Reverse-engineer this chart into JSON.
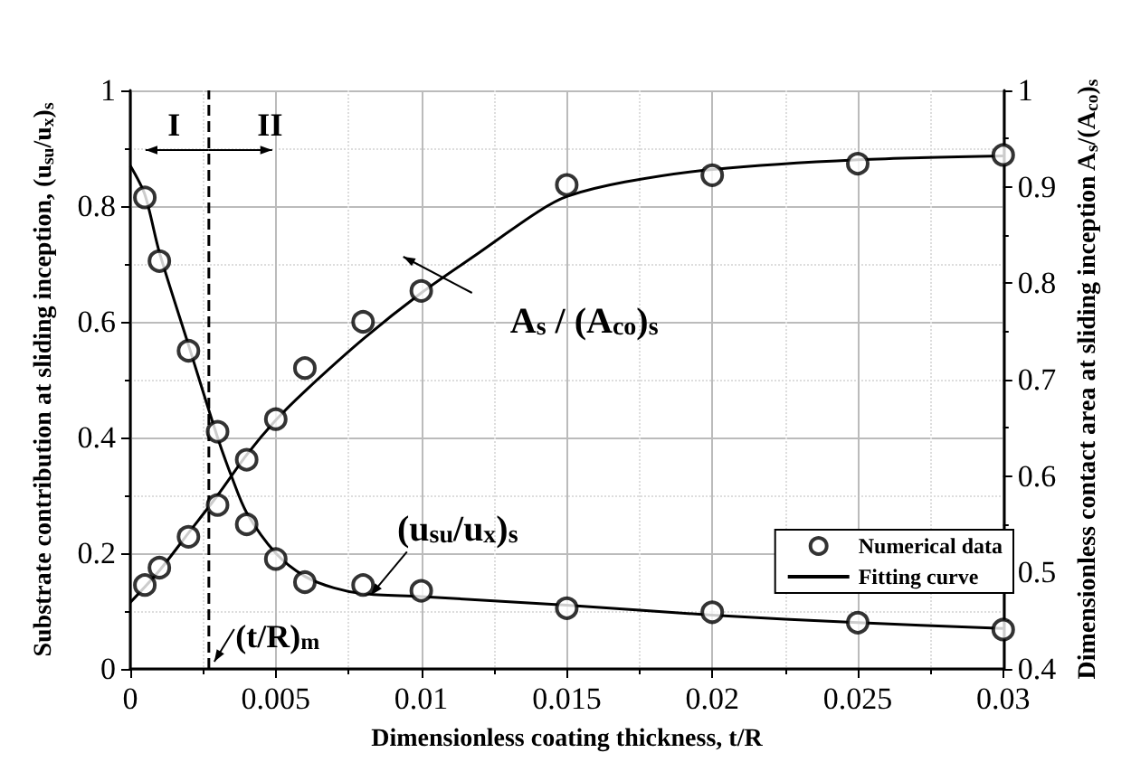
{
  "chart_data": {
    "type": "scatter",
    "xlabel": "Dimensionless coating thickness, t/R",
    "ylabel": "Substrate contribution at sliding inception, (u$_{su}$/u$_{x}$)$_{s}$",
    "y2label": "Dimensionless contact area at sliding inception A$_{s}$/(A$_{co}$)$_{s}$",
    "xlim": [
      0,
      0.03
    ],
    "xticks": [
      0,
      0.005,
      0.01,
      0.015,
      0.02,
      0.025,
      0.03
    ],
    "ylim": [
      0,
      1
    ],
    "yticks": [
      0,
      0.2,
      0.4,
      0.6,
      0.8,
      1.0
    ],
    "y2lim": [
      0.4,
      1
    ],
    "y2ticks": [
      0.4,
      0.5,
      0.6,
      0.7,
      0.8,
      0.9,
      1.0
    ],
    "grid": true,
    "legend": "bottom right",
    "marker": "circle",
    "series": [
      {
        "name": "Numerical data",
        "color": "#000000",
        "x": [
          0.0005,
          0.001,
          0.002,
          0.003,
          0.004,
          0.005,
          0.006,
          0.008,
          0.01,
          0.015,
          0.02,
          0.025,
          0.03
        ],
        "values": [
          0.815,
          0.705,
          0.55,
          0.41,
          0.25,
          0.19,
          0.15,
          0.145,
          0.135,
          0.105,
          0.098,
          0.08,
          0.068
        ]
      },
      {
        "axis": "y2",
        "color": "#000000",
        "x": [
          0.0005,
          0.001,
          0.002,
          0.003,
          0.004,
          0.005,
          0.006,
          0.008,
          0.01,
          0.015,
          0.02,
          0.025,
          0.03
        ],
        "values": [
          0.487,
          0.505,
          0.537,
          0.57,
          0.617,
          0.659,
          0.712,
          0.76,
          0.792,
          0.902,
          0.912,
          0.924,
          0.933
        ]
      },
      {
        "name": "Fitting curve",
        "type": "line",
        "color": "#000000",
        "line_style": "solid",
        "marker": "none",
        "x": [
          0,
          0.0005,
          0.001,
          0.002,
          0.003,
          0.0035,
          0.004,
          0.005,
          0.006,
          0.007,
          0.008,
          0.01,
          0.015,
          0.02,
          0.025,
          0.03
        ],
        "values": [
          0.87,
          0.82,
          0.72,
          0.56,
          0.4,
          0.33,
          0.27,
          0.2,
          0.16,
          0.14,
          0.13,
          0.125,
          0.11,
          0.093,
          0.08,
          0.07
        ]
      },
      {
        "type": "line",
        "axis": "y2",
        "color": "#000000",
        "line_style": "solid",
        "marker": "none",
        "x": [
          0,
          0.001,
          0.002,
          0.003,
          0.004,
          0.005,
          0.006,
          0.008,
          0.01,
          0.012,
          0.014,
          0.015,
          0.017,
          0.02,
          0.025,
          0.03
        ],
        "values": [
          0.469,
          0.502,
          0.541,
          0.58,
          0.622,
          0.658,
          0.688,
          0.742,
          0.79,
          0.832,
          0.874,
          0.89,
          0.905,
          0.918,
          0.928,
          0.932
        ]
      }
    ],
    "ref_lines": [
      {
        "axis": "x",
        "value": 0.0027,
        "label": "(t/R)$_{m}$",
        "line_style": "dashed",
        "color": "#000000"
      }
    ],
    "annotations": [
      "I",
      "II",
      "(u$_{su}$/u$_{x}$)$_{s}$",
      "A$_{s}$ / (A$_{co}$)$_{s}$"
    ]
  }
}
